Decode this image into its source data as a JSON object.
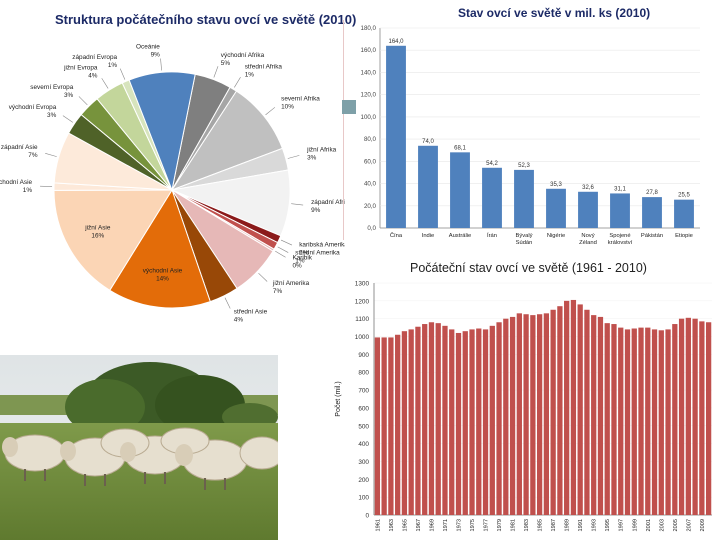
{
  "chart_data": [
    {
      "type": "pie",
      "title": "Struktura počátečního stavu ovcí ve světě (2010)",
      "slices": [
        {
          "label": "východní Afrika",
          "value": 5,
          "pct_label": "5%",
          "color": "#7f7f7f"
        },
        {
          "label": "střední Afrika",
          "value": 1,
          "pct_label": "1%",
          "color": "#a6a6a6"
        },
        {
          "label": "severní Afrika",
          "value": 10,
          "pct_label": "10%",
          "color": "#c0c0c0"
        },
        {
          "label": "jižní Afrika",
          "value": 3,
          "pct_label": "3%",
          "color": "#d9d9d9"
        },
        {
          "label": "západní Afrika",
          "value": 9,
          "pct_label": "9%",
          "color": "#f2f2f2"
        },
        {
          "label": "karibská Amerika",
          "value": 1,
          "pct_label": "1%",
          "color": "#8b1a1a"
        },
        {
          "label": "střední Amerika",
          "value": 1,
          "pct_label": "1%",
          "color": "#c0504d"
        },
        {
          "label": "Karibik",
          "value": 0,
          "pct_label": "0%",
          "color": "#e6b8b7"
        },
        {
          "label": "jižní Amerika",
          "value": 7,
          "pct_label": "7%",
          "color": "#e6b8b7"
        },
        {
          "label": "střední Asie",
          "value": 4,
          "pct_label": "4%",
          "color": "#984807"
        },
        {
          "label": "východní Asie",
          "value": 14,
          "pct_label": "14%",
          "color": "#e36c09"
        },
        {
          "label": "jižní Asie",
          "value": 16,
          "pct_label": "16%",
          "color": "#fbd5b5"
        },
        {
          "label": "jihovýchodní Asie",
          "value": 1,
          "pct_label": "1%",
          "color": "#fde9d9"
        },
        {
          "label": "západní Asie",
          "value": 7,
          "pct_label": "7%",
          "color": "#fdeada"
        },
        {
          "label": "východní Evropa",
          "value": 3,
          "pct_label": "3%",
          "color": "#4f6228"
        },
        {
          "label": "severní Evropa",
          "value": 3,
          "pct_label": "3%",
          "color": "#77933c"
        },
        {
          "label": "jižní Evropa",
          "value": 4,
          "pct_label": "4%",
          "color": "#c3d69b"
        },
        {
          "label": "západní Evropa",
          "value": 1,
          "pct_label": "1%",
          "color": "#d7e4bd"
        },
        {
          "label": "Oceánie",
          "value": 9,
          "pct_label": "9%",
          "color": "#4f81bd"
        }
      ]
    },
    {
      "type": "bar",
      "title": "Stav ovcí ve světě v mil. ks (2010)",
      "categories": [
        "Čína",
        "Indie",
        "Austrálie",
        "Írán",
        "Bývalý Súdán",
        "Nigérie",
        "Nový Zéland",
        "Spojené království",
        "Pákistán",
        "Etiopie"
      ],
      "values": [
        164.0,
        74.0,
        68.1,
        54.2,
        52.3,
        35.3,
        32.6,
        31.1,
        27.8,
        25.5
      ],
      "value_labels": [
        "164,0",
        "74,0",
        "68,1",
        "54,2",
        "52,3",
        "35,3",
        "32,6",
        "31,1",
        "27,8",
        "25,5"
      ],
      "y_ticks": [
        "0,0",
        "20,0",
        "40,0",
        "60,0",
        "80,0",
        "100,0",
        "120,0",
        "140,0",
        "160,0",
        "180,0"
      ],
      "ylim": [
        0,
        180
      ],
      "color": "#4f81bd"
    },
    {
      "type": "bar",
      "title": "Počáteční stav ovcí ve světě (1961 - 2010)",
      "ylabel": "Počet (mil.)",
      "x": [
        1961,
        1962,
        1963,
        1964,
        1965,
        1966,
        1967,
        1968,
        1969,
        1970,
        1971,
        1972,
        1973,
        1974,
        1975,
        1976,
        1977,
        1978,
        1979,
        1980,
        1981,
        1982,
        1983,
        1984,
        1985,
        1986,
        1987,
        1988,
        1989,
        1990,
        1991,
        1992,
        1993,
        1994,
        1995,
        1996,
        1997,
        1998,
        1999,
        2000,
        2001,
        2002,
        2003,
        2004,
        2005,
        2006,
        2007,
        2008,
        2009,
        2010
      ],
      "values": [
        995,
        995,
        995,
        1010,
        1030,
        1040,
        1055,
        1070,
        1080,
        1075,
        1060,
        1040,
        1020,
        1030,
        1040,
        1045,
        1040,
        1060,
        1080,
        1100,
        1110,
        1130,
        1125,
        1120,
        1125,
        1130,
        1150,
        1170,
        1200,
        1205,
        1180,
        1150,
        1120,
        1110,
        1075,
        1070,
        1050,
        1040,
        1045,
        1050,
        1050,
        1040,
        1035,
        1040,
        1070,
        1100,
        1105,
        1100,
        1085,
        1080
      ],
      "x_tick_labels": [
        "1961",
        "1963",
        "1965",
        "1967",
        "1969",
        "1971",
        "1973",
        "1975",
        "1977",
        "1979",
        "1981",
        "1983",
        "1985",
        "1987",
        "1989",
        "1991",
        "1993",
        "1995",
        "1997",
        "1999",
        "2001",
        "2003",
        "2005",
        "2007",
        "2009"
      ],
      "y_ticks": [
        "0",
        "100",
        "200",
        "300",
        "400",
        "500",
        "600",
        "700",
        "800",
        "900",
        "1000",
        "1100",
        "1200",
        "1300"
      ],
      "ylim": [
        0,
        1300
      ],
      "color": "#c0504d"
    }
  ],
  "photo": {
    "subject": "sheep-flock"
  }
}
